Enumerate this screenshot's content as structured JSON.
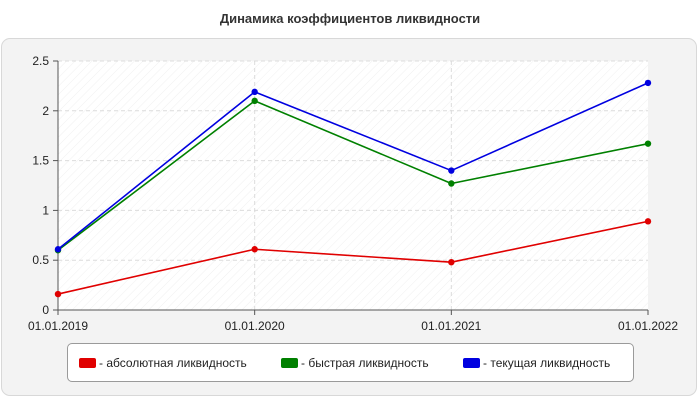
{
  "chart_data": {
    "type": "line",
    "title": "Динамика коэффициентов ликвидности",
    "categories": [
      "01.01.2019",
      "01.01.2020",
      "01.01.2021",
      "01.01.2022"
    ],
    "y_ticks": [
      "0",
      "0.5",
      "1",
      "1.5",
      "2",
      "2.5"
    ],
    "ylim": [
      0,
      2.5
    ],
    "grid": true,
    "legend_position": "bottom",
    "series": [
      {
        "name": "- абсолютная ликвидность",
        "color": "#e00000",
        "values": [
          0.16,
          0.61,
          0.48,
          0.89
        ]
      },
      {
        "name": "- быстрая ликвидность",
        "color": "#008000",
        "values": [
          0.6,
          2.1,
          1.27,
          1.67
        ]
      },
      {
        "name": "- текущая ликвидность",
        "color": "#0000e0",
        "values": [
          0.61,
          2.19,
          1.4,
          2.28
        ]
      }
    ]
  }
}
